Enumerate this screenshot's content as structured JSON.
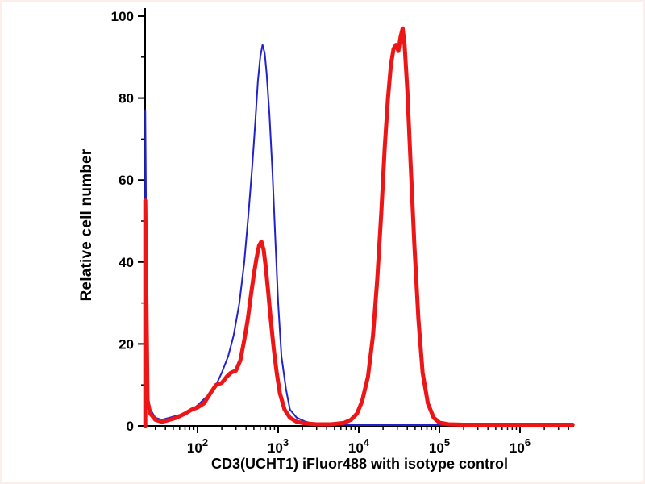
{
  "figure": {
    "background": "#ffffff",
    "frame_tint": "#f6cdc6",
    "axis_color": "#000000"
  },
  "chart_data": {
    "type": "line",
    "chart_kind": "flow-cytometry-histogram-overlay",
    "title": "",
    "xlabel": "CD3(UCHT1) iFluor488 with isotype control",
    "ylabel": "Relative cell number",
    "x_scale": "log10",
    "x_range_log10": [
      1.35,
      6.66
    ],
    "ylim": [
      0,
      100
    ],
    "grid": false,
    "legend_position": "none",
    "y_ticks": {
      "major": [
        0,
        20,
        40,
        60,
        80,
        100
      ],
      "minor": [
        10,
        30,
        50,
        70,
        90
      ]
    },
    "x_ticks": [
      {
        "value": 100,
        "base": "10",
        "exp": "2"
      },
      {
        "value": 1000,
        "base": "10",
        "exp": "3"
      },
      {
        "value": 10000,
        "base": "10",
        "exp": "4"
      },
      {
        "value": 100000,
        "base": "10",
        "exp": "5"
      },
      {
        "value": 1000000,
        "base": "10",
        "exp": "6"
      }
    ],
    "series": [
      {
        "name": "isotype control",
        "color": "#2222cc",
        "width": 2,
        "points": [
          [
            22.5,
            0
          ],
          [
            22.5,
            77
          ],
          [
            24,
            8
          ],
          [
            26,
            4
          ],
          [
            30,
            2
          ],
          [
            36,
            1.5
          ],
          [
            45,
            2
          ],
          [
            55,
            2.5
          ],
          [
            70,
            3
          ],
          [
            85,
            4
          ],
          [
            100,
            5
          ],
          [
            120,
            6.5
          ],
          [
            145,
            8
          ],
          [
            170,
            10
          ],
          [
            200,
            13
          ],
          [
            240,
            17
          ],
          [
            280,
            22
          ],
          [
            330,
            30
          ],
          [
            380,
            40
          ],
          [
            430,
            52
          ],
          [
            480,
            64
          ],
          [
            520,
            74
          ],
          [
            560,
            84
          ],
          [
            600,
            90
          ],
          [
            640,
            93
          ],
          [
            680,
            91
          ],
          [
            720,
            86
          ],
          [
            780,
            76
          ],
          [
            850,
            62
          ],
          [
            920,
            46
          ],
          [
            1000,
            30
          ],
          [
            1100,
            17
          ],
          [
            1250,
            9
          ],
          [
            1400,
            4
          ],
          [
            1700,
            2
          ],
          [
            2200,
            1
          ],
          [
            3000,
            0.5
          ],
          [
            5000,
            0.3
          ],
          [
            10000,
            0.2
          ],
          [
            100000,
            0.2
          ],
          [
            1000000,
            0.2
          ],
          [
            4500000,
            0.2
          ]
        ]
      },
      {
        "name": "CD3 (UCHT1) iFluor488",
        "color": "#ed1515",
        "width": 5,
        "points": [
          [
            22.5,
            0
          ],
          [
            22.5,
            55
          ],
          [
            24,
            6
          ],
          [
            26,
            3
          ],
          [
            30,
            1.5
          ],
          [
            36,
            1
          ],
          [
            45,
            1.5
          ],
          [
            55,
            2
          ],
          [
            70,
            3
          ],
          [
            85,
            4
          ],
          [
            100,
            4.5
          ],
          [
            120,
            5.5
          ],
          [
            145,
            8
          ],
          [
            170,
            10
          ],
          [
            200,
            10.5
          ],
          [
            230,
            12
          ],
          [
            260,
            13
          ],
          [
            300,
            13.5
          ],
          [
            340,
            16
          ],
          [
            380,
            21
          ],
          [
            420,
            26
          ],
          [
            460,
            32
          ],
          [
            500,
            37
          ],
          [
            540,
            41
          ],
          [
            580,
            44
          ],
          [
            620,
            45
          ],
          [
            660,
            43
          ],
          [
            700,
            39
          ],
          [
            750,
            33
          ],
          [
            810,
            26
          ],
          [
            880,
            19
          ],
          [
            960,
            13
          ],
          [
            1050,
            8
          ],
          [
            1200,
            4
          ],
          [
            1400,
            2
          ],
          [
            1700,
            1
          ],
          [
            2200,
            0.6
          ],
          [
            3000,
            0.4
          ],
          [
            4500,
            0.4
          ],
          [
            6500,
            0.7
          ],
          [
            8000,
            1.5
          ],
          [
            9500,
            3
          ],
          [
            11000,
            6
          ],
          [
            13000,
            12
          ],
          [
            15000,
            22
          ],
          [
            17000,
            36
          ],
          [
            19000,
            52
          ],
          [
            21000,
            68
          ],
          [
            23000,
            80
          ],
          [
            25000,
            88
          ],
          [
            27000,
            92
          ],
          [
            29000,
            93
          ],
          [
            31000,
            91.5
          ],
          [
            33000,
            95
          ],
          [
            35000,
            97
          ],
          [
            37000,
            93
          ],
          [
            40000,
            82
          ],
          [
            44000,
            64
          ],
          [
            49000,
            44
          ],
          [
            55000,
            26
          ],
          [
            62000,
            13
          ],
          [
            72000,
            5.5
          ],
          [
            85000,
            2
          ],
          [
            100000,
            0.8
          ],
          [
            130000,
            0.4
          ],
          [
            200000,
            0.3
          ],
          [
            1000000,
            0.3
          ],
          [
            4500000,
            0.3
          ]
        ]
      }
    ]
  }
}
